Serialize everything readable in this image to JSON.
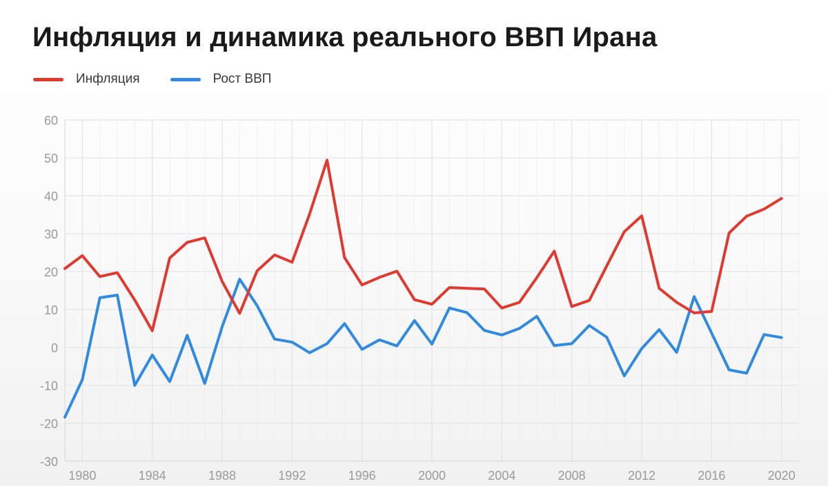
{
  "chart_data": {
    "type": "line",
    "title": "Инфляция и динамика реального ВВП Ирана",
    "xlabel": "",
    "ylabel": "",
    "ylim": [
      -30,
      60
    ],
    "xlim": [
      1979,
      2021
    ],
    "yticks": [
      60,
      50,
      40,
      30,
      20,
      10,
      0,
      -10,
      -20,
      -30
    ],
    "xticks": [
      1980,
      1984,
      1988,
      1992,
      1996,
      2000,
      2004,
      2008,
      2012,
      2016,
      2020
    ],
    "grid": true,
    "legend_position": "top-left",
    "x": [
      1979,
      1980,
      1981,
      1982,
      1983,
      1984,
      1985,
      1986,
      1987,
      1988,
      1989,
      1990,
      1991,
      1992,
      1993,
      1994,
      1995,
      1996,
      1997,
      1998,
      1999,
      2000,
      2001,
      2002,
      2003,
      2004,
      2005,
      2006,
      2007,
      2008,
      2009,
      2010,
      2011,
      2012,
      2013,
      2014,
      2015,
      2016,
      2017,
      2018,
      2019,
      2020,
      2021
    ],
    "series": [
      {
        "name": "Инфляция",
        "color": "#e03a30",
        "values": [
          20.8,
          24.2,
          18.7,
          19.7,
          12.5,
          4.4,
          23.6,
          27.7,
          28.9,
          17.4,
          9.0,
          20.2,
          24.4,
          22.5,
          35.2,
          49.4,
          23.7,
          16.5,
          18.5,
          20.1,
          12.6,
          11.4,
          15.8,
          15.6,
          15.4,
          10.4,
          11.9,
          18.4,
          25.4,
          10.8,
          12.4,
          21.5,
          30.5,
          34.7,
          15.6,
          11.9,
          9.1,
          9.5,
          30.2,
          34.6,
          36.5,
          39.3,
          null
        ],
        "values_note": null
      },
      {
        "name": "Рост ВВП",
        "color": "#2f8ae0",
        "values": [
          -18.4,
          -8.5,
          13.1,
          13.8,
          -10.0,
          -2.0,
          -9.0,
          3.2,
          -9.5,
          5.5,
          18.0,
          11.0,
          2.2,
          1.4,
          -1.4,
          1.0,
          6.3,
          -0.5,
          2.0,
          0.4,
          7.1,
          0.9,
          10.4,
          9.2,
          4.5,
          3.3,
          5.0,
          8.2,
          0.5,
          1.0,
          5.8,
          2.7,
          -7.5,
          -0.3,
          4.7,
          -1.3,
          13.4,
          3.8,
          -5.9,
          -6.8,
          3.4,
          2.6,
          null
        ]
      }
    ]
  }
}
